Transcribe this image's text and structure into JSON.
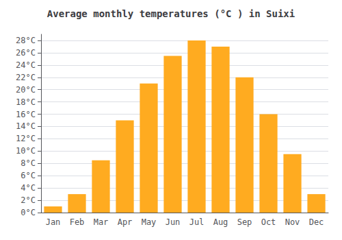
{
  "chart_data": {
    "type": "bar",
    "title": "Average monthly temperatures (°C ) in Suixi",
    "categories": [
      "Jan",
      "Feb",
      "Mar",
      "Apr",
      "May",
      "Jun",
      "Jul",
      "Aug",
      "Sep",
      "Oct",
      "Nov",
      "Dec"
    ],
    "values": [
      1,
      3,
      8.5,
      15,
      21,
      25.5,
      28,
      27,
      22,
      16,
      9.5,
      3
    ],
    "color": "#FFAB20",
    "ylim": [
      0,
      29
    ],
    "yticks": [
      {
        "value": 0,
        "label": "0°C"
      },
      {
        "value": 2,
        "label": "2°C"
      },
      {
        "value": 4,
        "label": "4°C"
      },
      {
        "value": 6,
        "label": "6°C"
      },
      {
        "value": 8,
        "label": "8°C"
      },
      {
        "value": 10,
        "label": "10°C"
      },
      {
        "value": 12,
        "label": "12°C"
      },
      {
        "value": 14,
        "label": "14°C"
      },
      {
        "value": 16,
        "label": "16°C"
      },
      {
        "value": 18,
        "label": "18°C"
      },
      {
        "value": 20,
        "label": "20°C"
      },
      {
        "value": 22,
        "label": "22°C"
      },
      {
        "value": 24,
        "label": "24°C"
      },
      {
        "value": 26,
        "label": "26°C"
      },
      {
        "value": 28,
        "label": "28°C"
      }
    ],
    "grid": true
  }
}
